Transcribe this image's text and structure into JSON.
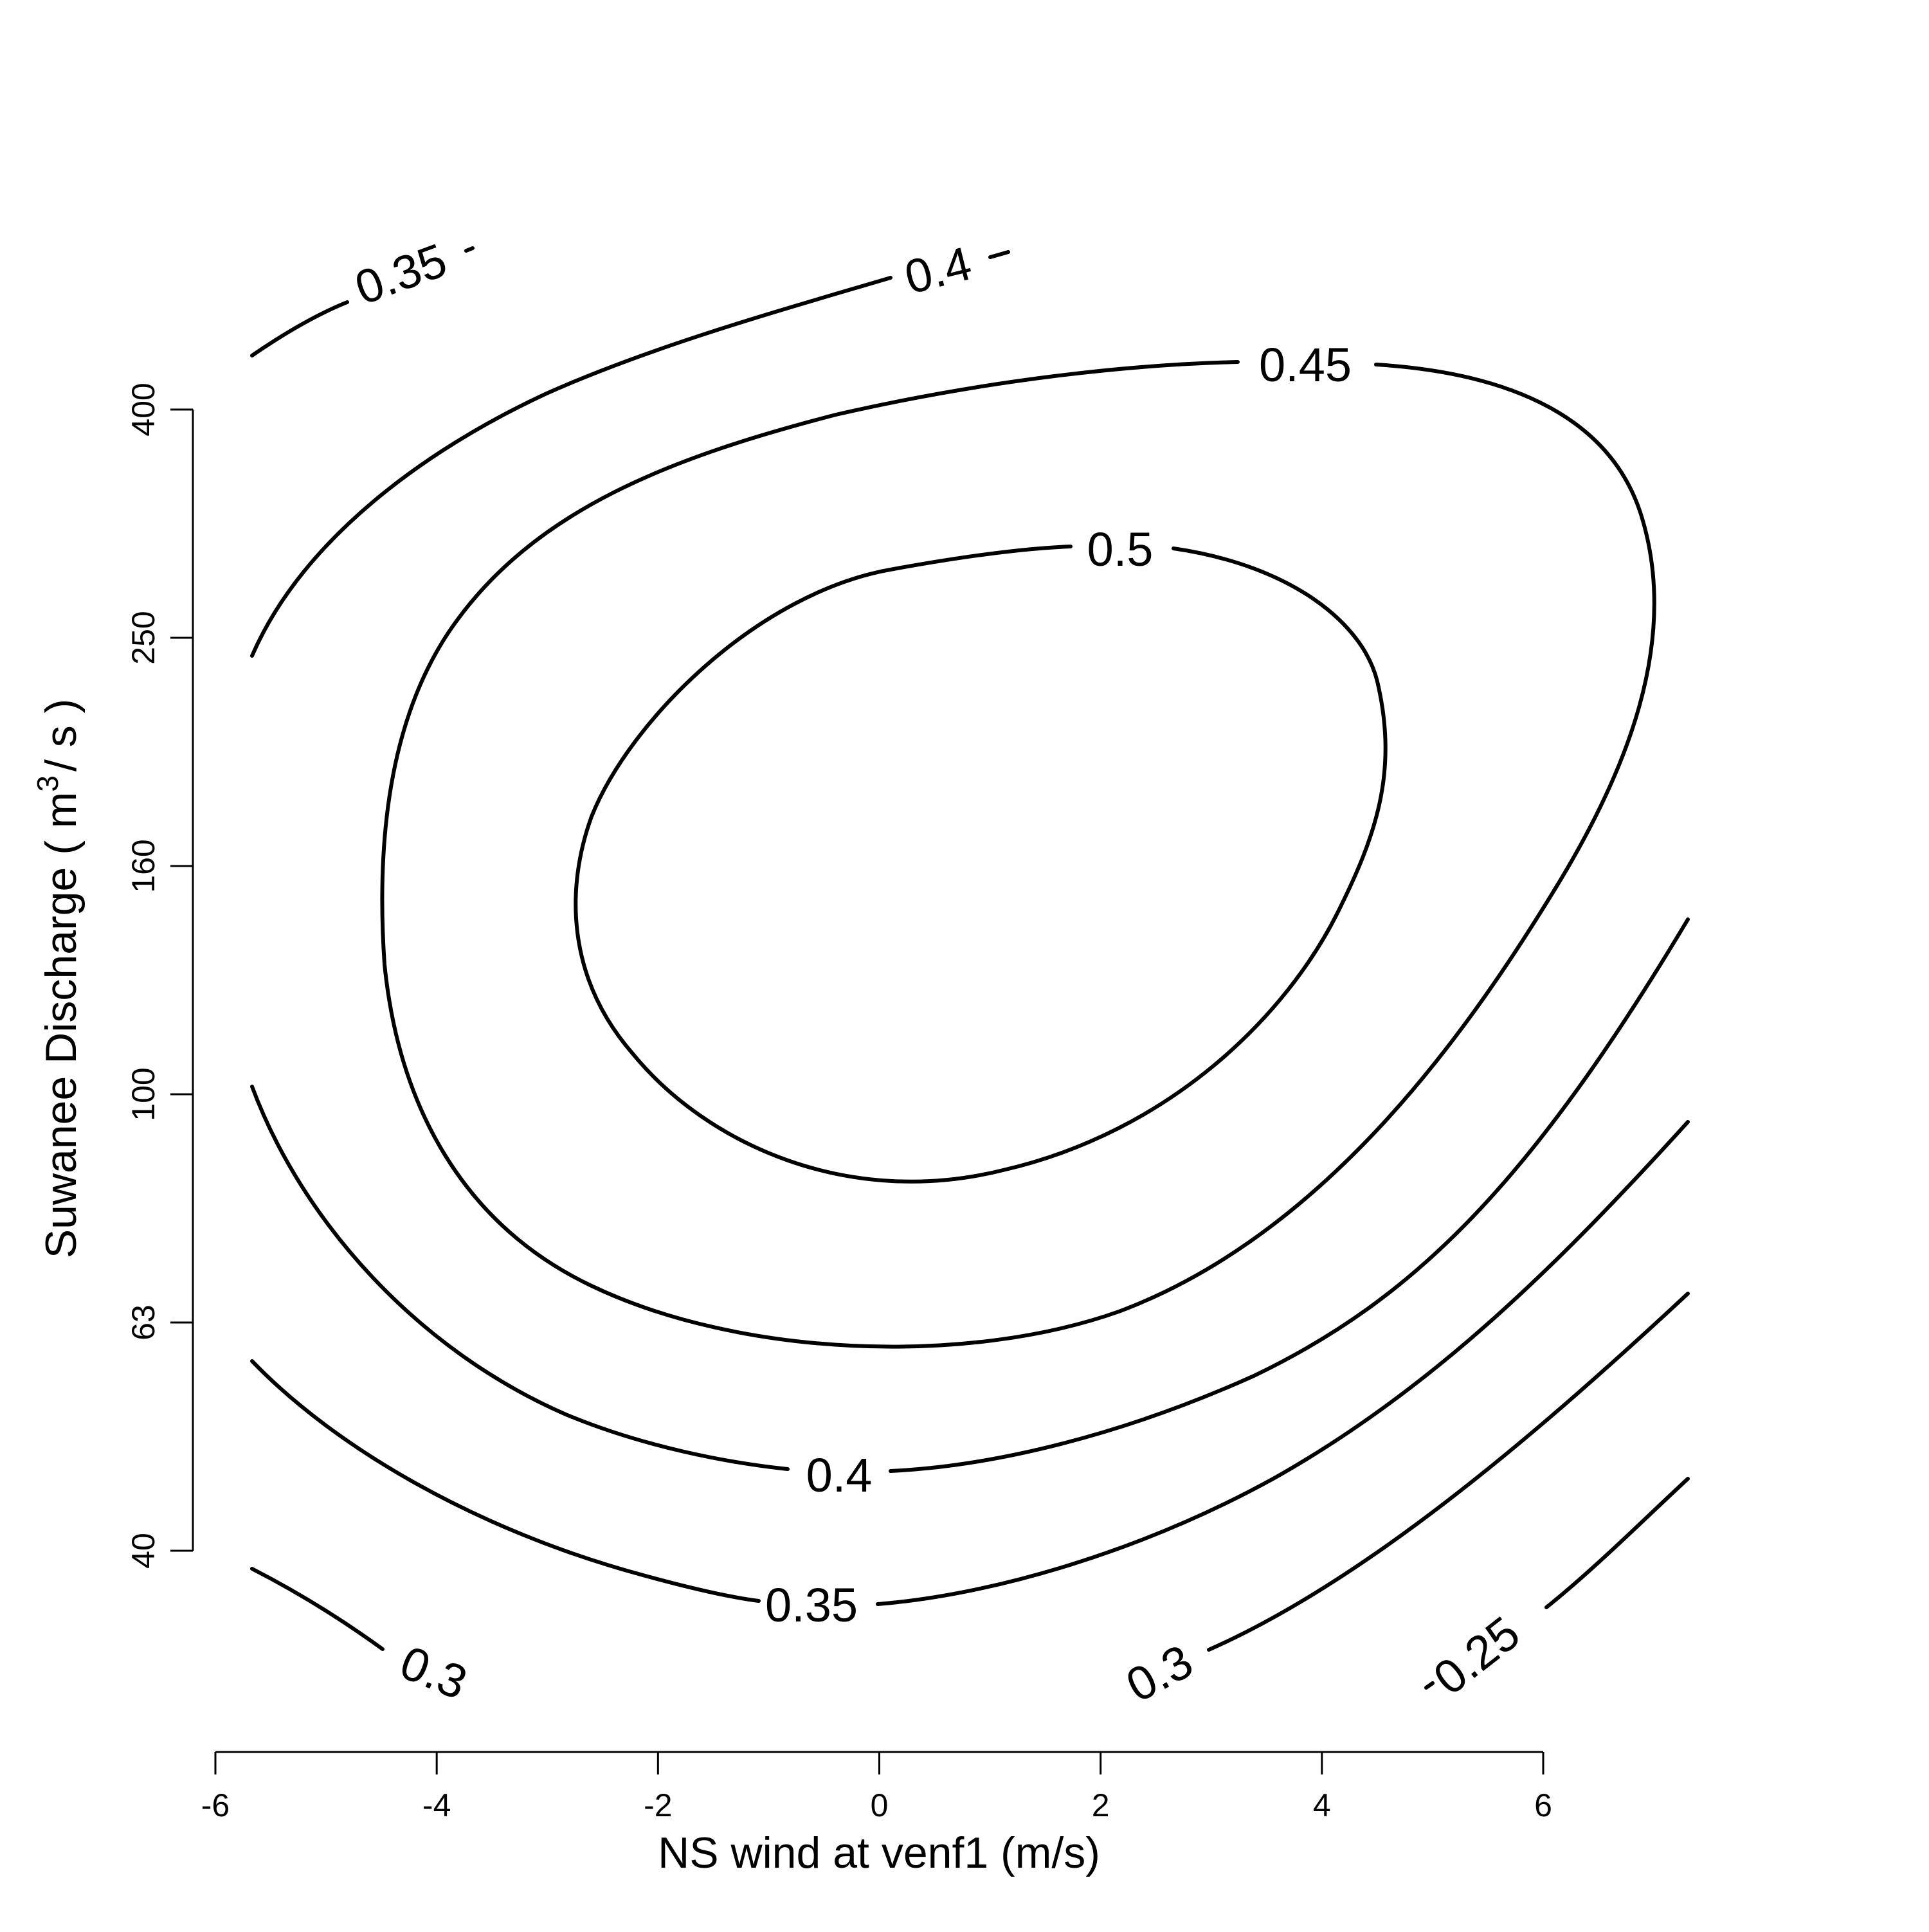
{
  "chart_data": {
    "type": "contour",
    "title": "",
    "xlabel": "NS wind at venf1 (m/s)",
    "ylabel_main": "Suwanee Discharge ( m",
    "ylabel_sup": "3",
    "ylabel_tail": "/ s )",
    "x_ticks": [
      -6,
      -4,
      -2,
      0,
      2,
      4,
      6
    ],
    "y_ticks": [
      40,
      63,
      100,
      160,
      250,
      400
    ],
    "xlim": [
      -6,
      6
    ],
    "ylim": [
      40,
      400
    ],
    "y_scale": "log",
    "grid": false,
    "contours": [
      {
        "level": 0.5,
        "label": "0.5"
      },
      {
        "level": 0.45,
        "label": "0.45"
      },
      {
        "level": 0.4,
        "label": "0.4"
      },
      {
        "level": 0.35,
        "label": "0.35"
      },
      {
        "level": 0.3,
        "label": "0.3"
      },
      {
        "level": 0.25,
        "label": "0.25"
      }
    ]
  }
}
